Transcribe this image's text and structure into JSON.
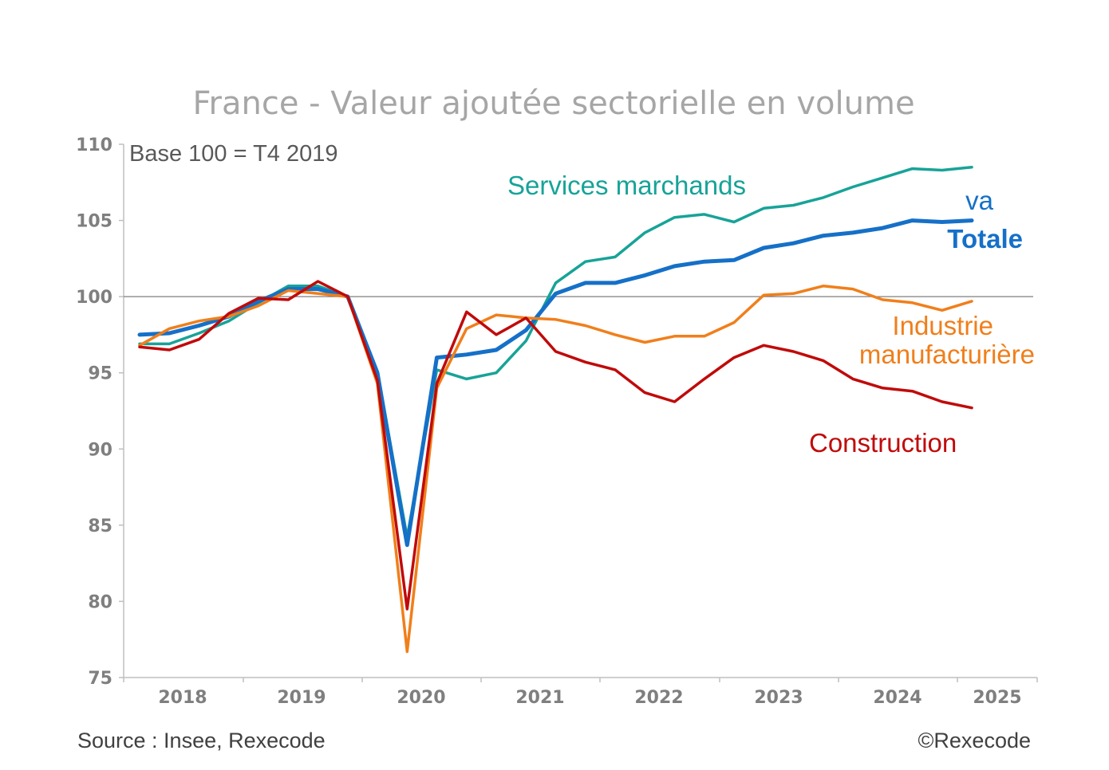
{
  "chart_data": {
    "type": "line",
    "title": "France - Valeur ajoutée sectorielle en volume",
    "subtitle": "Base 100 = T4 2019",
    "xlabel": "",
    "ylabel": "",
    "ylim": [
      75,
      110
    ],
    "yticks": [
      75,
      80,
      85,
      90,
      95,
      100,
      105,
      110
    ],
    "ytick_labels": [
      "75",
      "80",
      "85",
      "90",
      "95",
      "100",
      "105",
      "110"
    ],
    "xtick_labels": [
      "2018",
      "2019",
      "2020",
      "2021",
      "2022",
      "2023",
      "2024",
      "2025"
    ],
    "reference_line": 100,
    "grid": false,
    "quarters": [
      "2018T1",
      "2018T2",
      "2018T3",
      "2018T4",
      "2019T1",
      "2019T2",
      "2019T3",
      "2019T4",
      "2020T1",
      "2020T2",
      "2020T3",
      "2020T4",
      "2021T1",
      "2021T2",
      "2021T3",
      "2021T4",
      "2022T1",
      "2022T2",
      "2022T3",
      "2022T4",
      "2023T1",
      "2023T2",
      "2023T3",
      "2023T4",
      "2024T1",
      "2024T2",
      "2024T3",
      "2024T4",
      "2025T1"
    ],
    "series": [
      {
        "name": "Services marchands",
        "label_lines": [
          "Services marchands"
        ],
        "color": "#17a398",
        "values": [
          96.9,
          96.9,
          97.6,
          98.4,
          99.6,
          100.7,
          100.7,
          100.0,
          95.1,
          84.2,
          95.2,
          94.6,
          95.0,
          97.1,
          100.9,
          102.3,
          102.6,
          104.2,
          105.2,
          105.4,
          104.9,
          105.8,
          106.0,
          106.5,
          107.2,
          107.8,
          108.4,
          108.3,
          108.5
        ]
      },
      {
        "name": "va Totale",
        "label_lines": [
          "va",
          "Totale"
        ],
        "color": "#1570c8",
        "values": [
          97.5,
          97.6,
          98.1,
          98.7,
          99.7,
          100.5,
          100.5,
          100.0,
          95.0,
          83.7,
          96.0,
          96.2,
          96.5,
          97.8,
          100.2,
          100.9,
          100.9,
          101.4,
          102.0,
          102.3,
          102.4,
          103.2,
          103.5,
          104.0,
          104.2,
          104.5,
          105.0,
          104.9,
          105.0
        ]
      },
      {
        "name": "Industrie manufacturière",
        "label_lines": [
          "Industrie",
          "manufacturière"
        ],
        "color": "#f07f1b",
        "values": [
          96.8,
          97.9,
          98.4,
          98.7,
          99.4,
          100.4,
          100.2,
          100.0,
          94.3,
          76.7,
          94.0,
          97.9,
          98.8,
          98.6,
          98.5,
          98.1,
          97.5,
          97.0,
          97.4,
          97.4,
          98.3,
          100.1,
          100.2,
          100.7,
          100.5,
          99.8,
          99.6,
          99.1,
          99.7
        ]
      },
      {
        "name": "Construction",
        "label_lines": [
          "Construction"
        ],
        "color": "#c00a0a",
        "values": [
          96.7,
          96.5,
          97.2,
          98.9,
          99.9,
          99.8,
          101.0,
          100.0,
          94.5,
          79.5,
          94.3,
          99.0,
          97.5,
          98.6,
          96.4,
          95.7,
          95.2,
          93.7,
          93.1,
          94.6,
          96.0,
          96.8,
          96.4,
          95.8,
          94.6,
          94.0,
          93.8,
          93.1,
          92.7
        ]
      }
    ]
  },
  "footer": {
    "source": "Source : Insee, Rexecode",
    "copyright": "©Rexecode"
  }
}
